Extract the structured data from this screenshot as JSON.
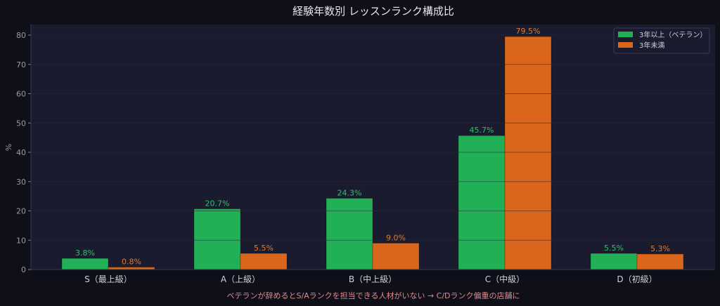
{
  "chart_data": {
    "type": "bar",
    "title": "経験年数別 レッスンランク構成比",
    "xlabel": "",
    "ylabel": "%",
    "ylim": [
      0,
      83.6
    ],
    "yticks": [
      0,
      10,
      20,
      30,
      40,
      50,
      60,
      70,
      80
    ],
    "grid": true,
    "legend_position": "top-right",
    "categories": [
      "S（最上級）",
      "A（上級）",
      "B（中上級）",
      "C（中級）",
      "D（初級）"
    ],
    "series": [
      {
        "name": "3年以上（ベテラン）",
        "color": "#22b057",
        "values": [
          3.8,
          20.7,
          24.3,
          45.7,
          5.5
        ],
        "labels": [
          "3.8%",
          "20.7%",
          "24.3%",
          "45.7%",
          "5.5%"
        ]
      },
      {
        "name": "3年未満",
        "color": "#d9661a",
        "values": [
          0.8,
          5.5,
          9.0,
          79.5,
          5.3
        ],
        "labels": [
          "0.8%",
          "5.5%",
          "9.0%",
          "79.5%",
          "5.3%"
        ]
      }
    ],
    "annotation": "ベテランが辞めるとS/Aランクを担当できる人材がいない → C/Dランク偏重の店舗に",
    "colors": {
      "label_green": "#2fc065",
      "label_orange": "#e07a2a",
      "annotation": "#e08a8a"
    }
  }
}
